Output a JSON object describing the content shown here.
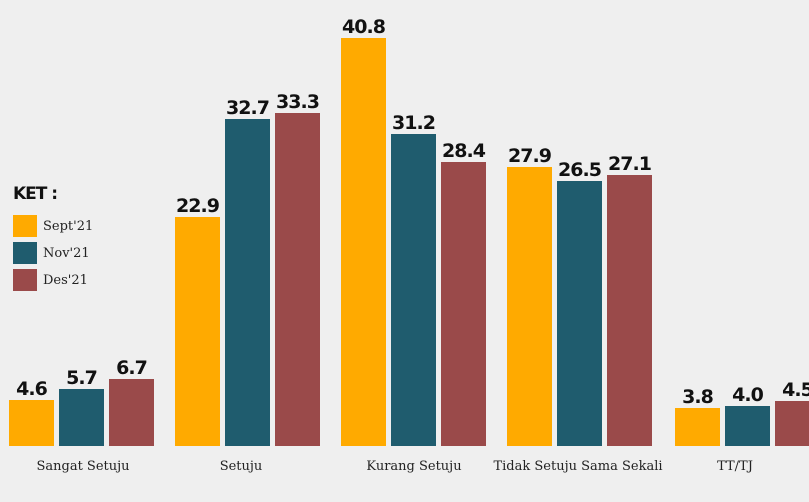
{
  "chart_data": {
    "type": "bar",
    "categories": [
      "Sangat Setuju",
      "Setuju",
      "Kurang Setuju",
      "Tidak Setuju Sama Sekali",
      "TT/TJ"
    ],
    "series": [
      {
        "name": "Sept'21",
        "color": "#FFAA00",
        "values": [
          4.6,
          22.9,
          40.8,
          27.9,
          3.8
        ]
      },
      {
        "name": "Nov'21",
        "color": "#1F5C6E",
        "values": [
          5.7,
          32.7,
          31.2,
          26.5,
          4.0
        ]
      },
      {
        "name": "Des'21",
        "color": "#9A4A4A",
        "values": [
          6.7,
          33.3,
          28.4,
          27.1,
          4.5
        ]
      }
    ],
    "value_labels": [
      [
        "4.6",
        "22.9",
        "40.8",
        "27.9",
        "3.8"
      ],
      [
        "5.7",
        "32.7",
        "31.2",
        "26.5",
        "4.0"
      ],
      [
        "6.7",
        "33.3",
        "28.4",
        "27.1",
        "4.5"
      ]
    ],
    "title": "",
    "xlabel": "",
    "ylabel": "",
    "ylim": [
      0,
      40.8
    ],
    "grid": false,
    "legend_title": "KET :",
    "legend_placement": "left"
  }
}
